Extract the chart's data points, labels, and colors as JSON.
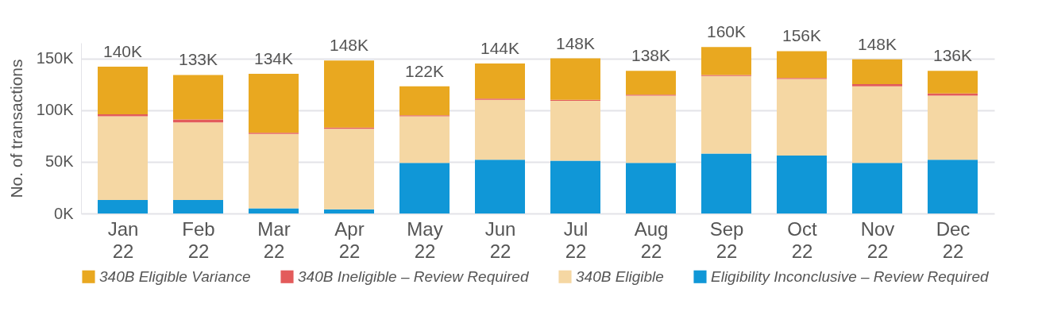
{
  "chart_data": {
    "type": "bar",
    "stacked": true,
    "ylabel": "No. of transactions",
    "categories": [
      "Jan 22",
      "Feb 22",
      "Mar 22",
      "Apr 22",
      "May 22",
      "Jun 22",
      "Jul 22",
      "Aug 22",
      "Sep 22",
      "Oct 22",
      "Nov 22",
      "Dec 22"
    ],
    "series": [
      {
        "name": "Eligibility Inconclusive – Review Required",
        "color": "#1097d7",
        "values": [
          13000,
          13000,
          5000,
          4000,
          49000,
          52000,
          51000,
          49000,
          58000,
          56000,
          49000,
          52000
        ]
      },
      {
        "name": "340B Eligible",
        "color": "#f5d7a3",
        "values": [
          81000,
          75000,
          72000,
          78000,
          45000,
          58000,
          58000,
          65000,
          75000,
          74000,
          74000,
          62000
        ]
      },
      {
        "name": "340B Ineligible – Review Required",
        "color": "#e35b5b",
        "values": [
          2000,
          3000,
          1000,
          1000,
          1000,
          1000,
          1000,
          1000,
          1000,
          1000,
          2000,
          2000
        ]
      },
      {
        "name": "340B Eligible Variance",
        "color": "#e9a820",
        "values": [
          46000,
          43000,
          57000,
          65000,
          28000,
          34000,
          40000,
          23000,
          27000,
          26000,
          24000,
          22000
        ]
      }
    ],
    "totals": [
      "140K",
      "133K",
      "134K",
      "148K",
      "122K",
      "144K",
      "148K",
      "138K",
      "160K",
      "156K",
      "148K",
      "136K"
    ],
    "ylim": [
      0,
      165000
    ],
    "yticks": [
      {
        "value": 0,
        "label": "0K"
      },
      {
        "value": 50000,
        "label": "50K"
      },
      {
        "value": 100000,
        "label": "100K"
      },
      {
        "value": 150000,
        "label": "150K"
      }
    ],
    "grid": "y",
    "legend": "bottom"
  }
}
